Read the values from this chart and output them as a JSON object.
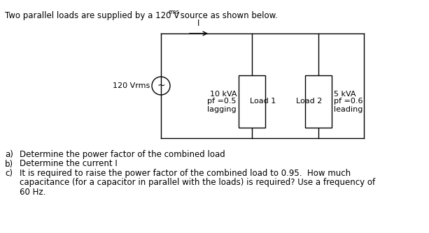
{
  "title_main": "Two parallel loads are supplied by a 120 V",
  "title_sub": "rms",
  "title_end": " source as shown below.",
  "source_label": "120 Vrms",
  "load1_line1": "10 kVA",
  "load1_line2": "pf =0.5",
  "load1_line3": "lagging",
  "load1_label": "Load 1",
  "load2_line1": "5 kVA",
  "load2_line2": "pf =0.6",
  "load2_line3": "leading",
  "load2_label": "Load 2",
  "current_label": "I",
  "qa": "Determine the power factor of the combined load",
  "qb": "Determine the current I",
  "qc1": "It is required to raise the power factor of the combined load to 0.95.  How much",
  "qc2": "capacitance (for a capacitor in parallel with the loads) is required? Use a frequency of",
  "qc3": "60 Hz.",
  "bg_color": "#ffffff",
  "text_color": "#000000",
  "line_color": "#000000",
  "font_size": 8.5
}
